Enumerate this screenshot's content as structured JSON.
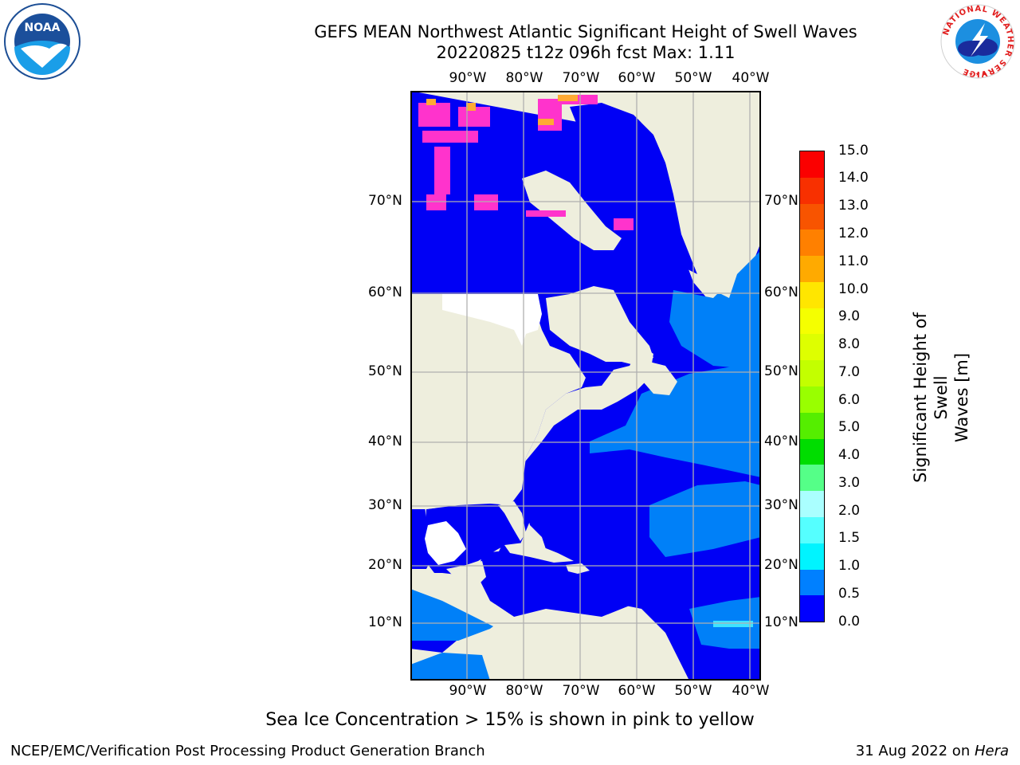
{
  "header": {
    "title_line1": "GEFS MEAN Northwest Atlantic Significant Height of Swell Waves",
    "title_line2": "20220825 t12z 096h fcst   Max: 1.11"
  },
  "logos": {
    "left": {
      "name": "NOAA",
      "ring_text": "NATIONAL OCEANIC AND ATMOSPHERIC ADMINISTRATION · U.S. DEPARTMENT OF COMMERCE"
    },
    "right": {
      "ring_text": "NATIONAL WEATHER SERVICE"
    }
  },
  "map": {
    "lon_labels": [
      "90°W",
      "80°W",
      "70°W",
      "60°W",
      "50°W",
      "40°W"
    ],
    "lat_labels": [
      "70°N",
      "60°N",
      "50°N",
      "40°N",
      "30°N",
      "20°N",
      "10°N"
    ],
    "colors": {
      "land": "#eeeedd",
      "ocean_low": "#0000f5",
      "ocean_mid": "#0080f8",
      "ice_pink": "#ff33cc",
      "ice_orange": "#ffaa33",
      "grid": "#b0b0b0"
    }
  },
  "colorbar": {
    "label_line1": "Significant Height of Swell",
    "label_line2": "Waves [m]",
    "ticks": [
      "15.0",
      "14.0",
      "13.0",
      "12.0",
      "11.0",
      "10.0",
      "9.0",
      "8.0",
      "7.0",
      "6.0",
      "5.0",
      "4.0",
      "3.0",
      "2.0",
      "1.5",
      "1.0",
      "0.5",
      "0.0"
    ],
    "colors": [
      "#fb0000",
      "#f83000",
      "#f85400",
      "#ff8000",
      "#ffaa00",
      "#ffe600",
      "#f5ff00",
      "#deff00",
      "#c3ff00",
      "#99ff00",
      "#55ee00",
      "#00dd00",
      "#55ff88",
      "#aaffff",
      "#55ffff",
      "#00f4ff",
      "#0080ff",
      "#0000ff"
    ]
  },
  "caption": "Sea Ice Concentration > 15% is shown in pink to yellow",
  "footer": {
    "left": "NCEP/EMC/Verification Post Processing Product Generation Branch",
    "right_prefix": "31 Aug 2022 on ",
    "right_host": "Hera"
  }
}
